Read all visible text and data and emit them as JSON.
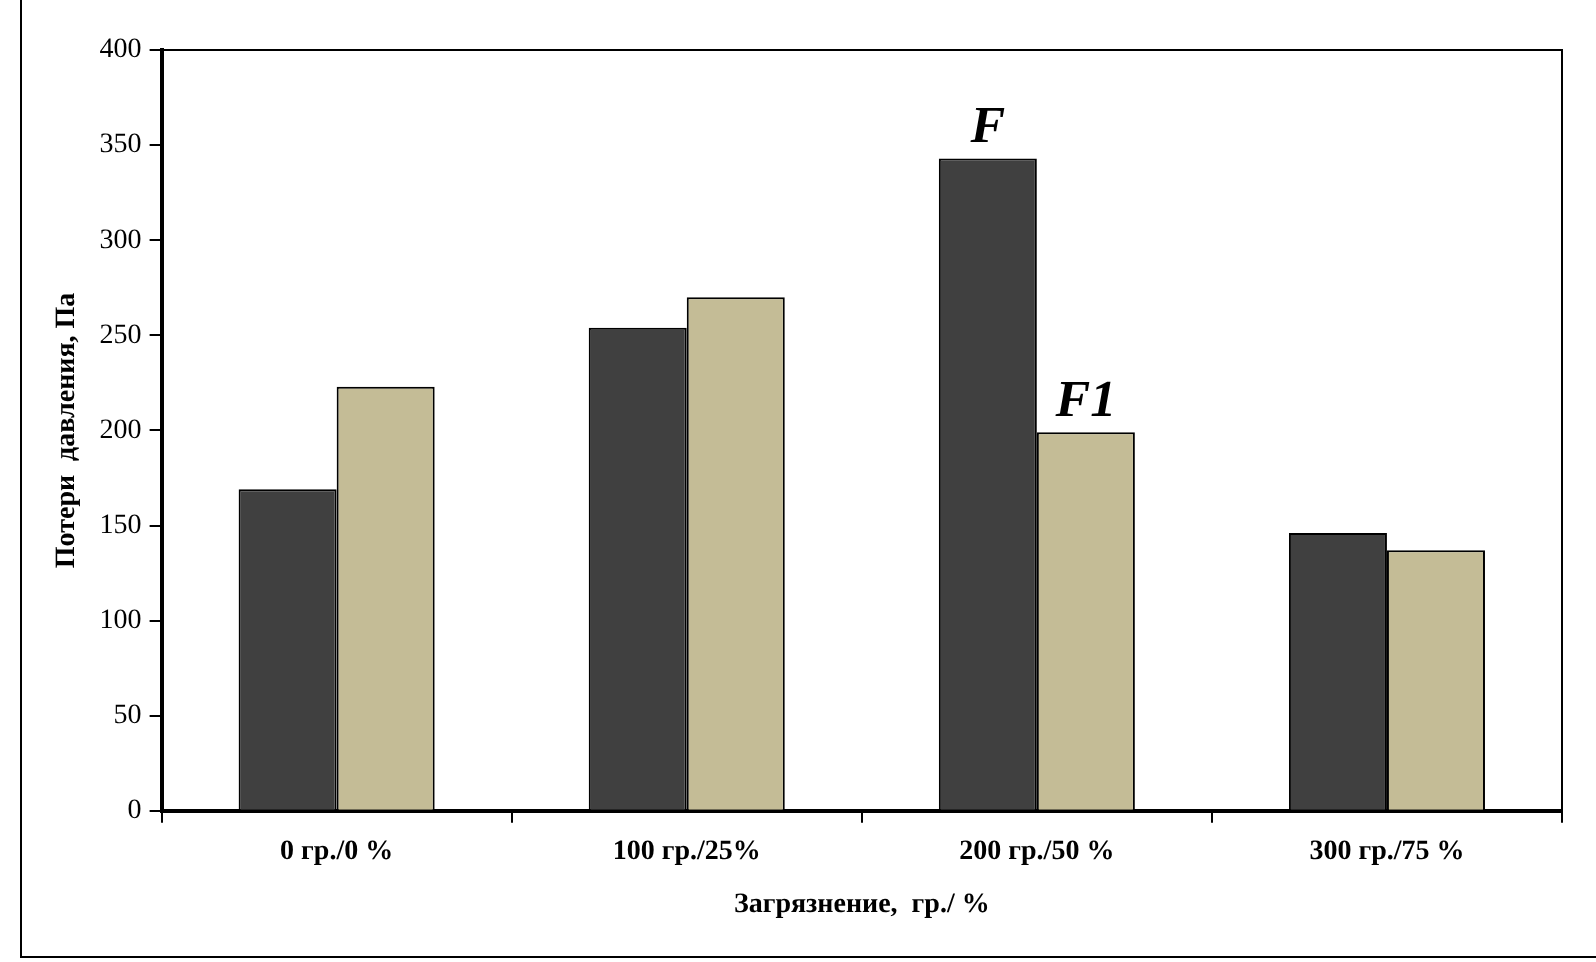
{
  "chart_data": {
    "type": "bar",
    "xlabel": "Загрязнение,  гр./ %",
    "ylabel": "Потери  давления, Па",
    "categories": [
      "0 гр./0 %",
      "100 гр./25%",
      "200 гр./50 %",
      "300 гр./75 %"
    ],
    "series": [
      {
        "color": "#404040",
        "values": [
          169,
          254,
          343,
          146
        ]
      },
      {
        "color": "#c4bc96",
        "values": [
          223,
          270,
          199,
          137
        ]
      }
    ],
    "ylim": [
      0,
      400
    ],
    "yticks": [
      0,
      50,
      100,
      150,
      200,
      250,
      300,
      350,
      400
    ],
    "grid": false,
    "legend": false,
    "annotations": [
      {
        "text": "F",
        "x": "200 гр./50 %",
        "y": 343
      },
      {
        "text": "F1",
        "x": "200 гр./50 %",
        "y": 199
      }
    ]
  }
}
